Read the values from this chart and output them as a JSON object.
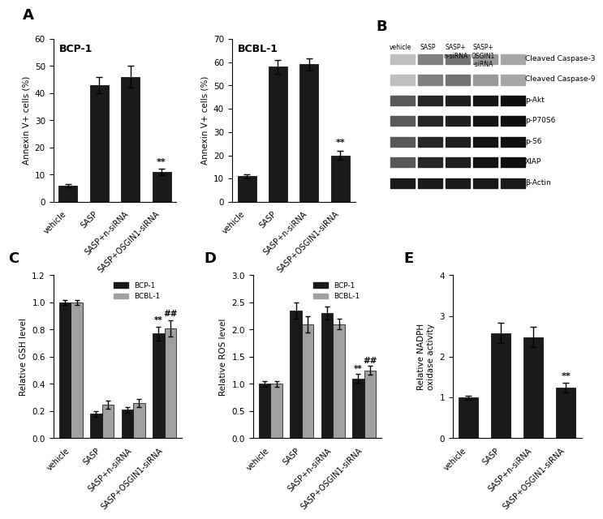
{
  "panel_A_BCP1": {
    "categories": [
      "vehicle",
      "SASP",
      "SASP+n-siRNA",
      "SASP+OSGIN1-siRNA"
    ],
    "values": [
      6,
      43,
      46,
      11
    ],
    "errors": [
      0.5,
      3,
      4,
      1.2
    ],
    "ylabel": "Annexin V+ cells (%)",
    "ylim": [
      0,
      60
    ],
    "yticks": [
      0,
      10,
      20,
      30,
      40,
      50,
      60
    ],
    "title": "BCP-1",
    "sig_last": "**"
  },
  "panel_A_BCBL1": {
    "categories": [
      "vehicle",
      "SASP",
      "SASP+n-siRNA",
      "SASP+OSGIN1-siRNA"
    ],
    "values": [
      11,
      58,
      59,
      20
    ],
    "errors": [
      0.8,
      3,
      2.5,
      2
    ],
    "ylabel": "Annexin V+ cells (%)",
    "ylim": [
      0,
      70
    ],
    "yticks": [
      0,
      10,
      20,
      30,
      40,
      50,
      60,
      70
    ],
    "title": "BCBL-1",
    "sig_last": "**"
  },
  "panel_B": {
    "labels": [
      "Cleaved Caspase-3",
      "Cleaved Caspase-9",
      "p-Akt",
      "p-P70S6",
      "p-S6",
      "XIAP",
      "β-Actin"
    ]
  },
  "panel_C": {
    "categories": [
      "vehicle",
      "SASP",
      "SASP+n-siRNA",
      "SASP+OSGIN1-siRNA"
    ],
    "bcp1_values": [
      1.0,
      0.18,
      0.21,
      0.77
    ],
    "bcbl1_values": [
      1.0,
      0.25,
      0.26,
      0.81
    ],
    "bcp1_errors": [
      0.02,
      0.02,
      0.02,
      0.05
    ],
    "bcbl1_errors": [
      0.02,
      0.03,
      0.03,
      0.06
    ],
    "ylabel": "Relative GSH level",
    "ylim": [
      0,
      1.2
    ],
    "yticks": [
      0.0,
      0.2,
      0.4,
      0.6,
      0.8,
      1.0,
      1.2
    ],
    "sig_last_bcp1": "**",
    "sig_last_bcbl1": "##"
  },
  "panel_D": {
    "categories": [
      "vehicle",
      "SASP",
      "SASP+n-siRNA",
      "SASP+OSGIN1-siRNA"
    ],
    "bcp1_values": [
      1.0,
      2.35,
      2.3,
      1.1
    ],
    "bcbl1_values": [
      1.0,
      2.1,
      2.1,
      1.25
    ],
    "bcp1_errors": [
      0.05,
      0.15,
      0.12,
      0.08
    ],
    "bcbl1_errors": [
      0.05,
      0.15,
      0.1,
      0.08
    ],
    "ylabel": "Relative ROS level",
    "ylim": [
      0,
      3.0
    ],
    "yticks": [
      0.0,
      0.5,
      1.0,
      1.5,
      2.0,
      2.5,
      3.0
    ],
    "sig_last_bcp1": "**",
    "sig_last_bcbl1": "##"
  },
  "panel_E": {
    "categories": [
      "vehicle",
      "SASP",
      "SASP+n-siRNA",
      "SASP+OSGIN1-siRNA"
    ],
    "values": [
      1.0,
      2.58,
      2.48,
      1.25
    ],
    "errors": [
      0.05,
      0.25,
      0.25,
      0.12
    ],
    "ylabel": "Relative NADPH\noxidase activity",
    "ylim": [
      0,
      4.0
    ],
    "yticks": [
      0.0,
      1.0,
      2.0,
      3.0,
      4.0
    ],
    "sig_last": "**"
  },
  "bar_color_black": "#1a1a1a",
  "bar_color_gray": "#a0a0a0",
  "tick_label_rotation": 45,
  "tick_fontsize": 7
}
